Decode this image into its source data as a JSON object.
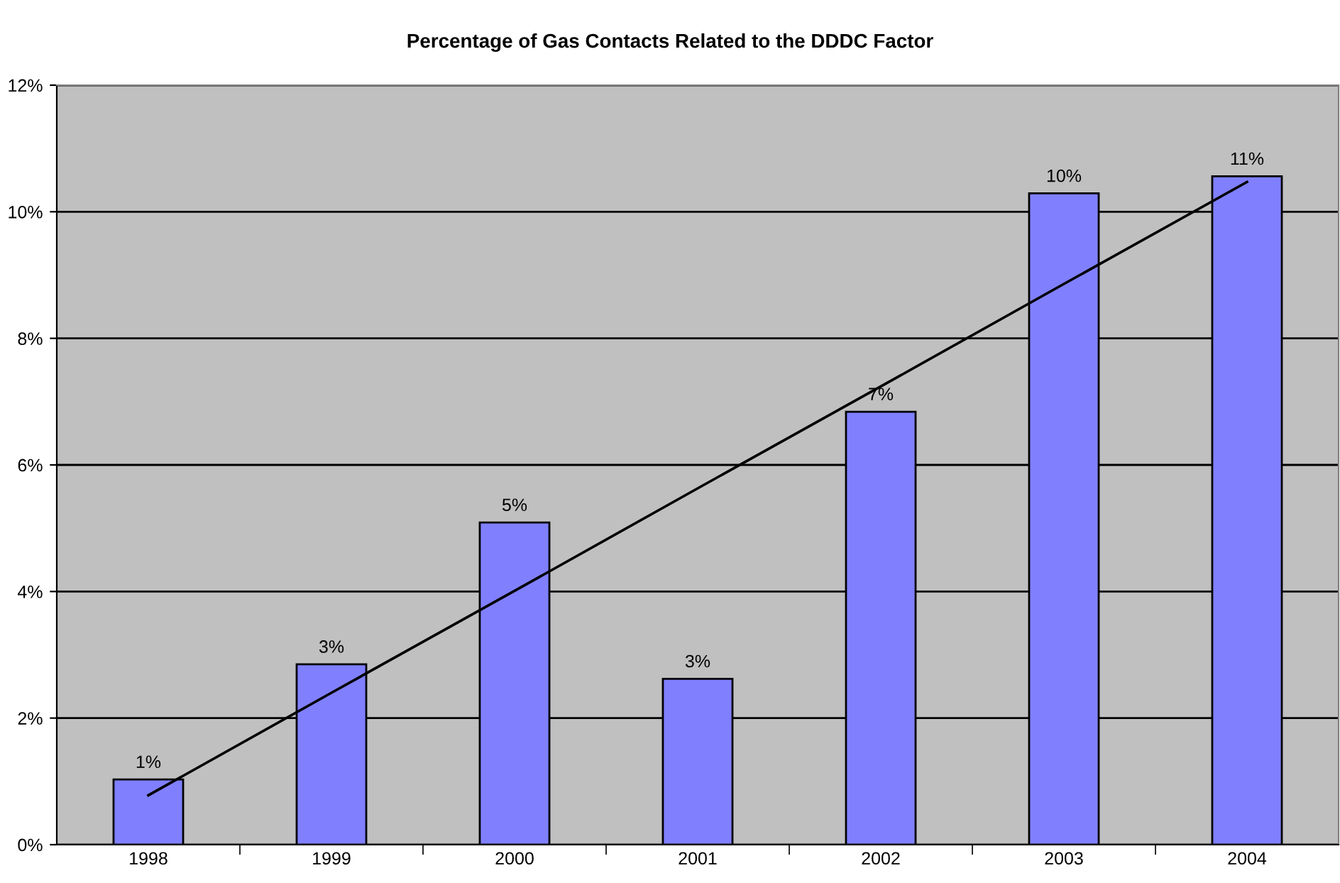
{
  "chart_data": {
    "type": "bar",
    "title": "Percentage of Gas Contacts Related to the DDDC Factor",
    "categories": [
      "1998",
      "1999",
      "2000",
      "2001",
      "2002",
      "2003",
      "2004"
    ],
    "series": [
      {
        "color": "#8080ff",
        "values": [
          1.03,
          2.85,
          5.09,
          2.62,
          6.84,
          10.29,
          10.56
        ],
        "value_labels": [
          "1%",
          "3%",
          "5%",
          "3%",
          "7%",
          "10%",
          "11%"
        ]
      },
      {
        "type": "line",
        "color": "#000000",
        "values": [
          0.78,
          2.4,
          4.01,
          5.63,
          7.24,
          8.86,
          10.47
        ]
      }
    ],
    "ylim": [
      0,
      12
    ],
    "yticks": [
      {
        "value": 0,
        "label": "0%"
      },
      {
        "value": 2,
        "label": "2%"
      },
      {
        "value": 4,
        "label": "4%"
      },
      {
        "value": 6,
        "label": "6%"
      },
      {
        "value": 8,
        "label": "8%"
      },
      {
        "value": 10,
        "label": "10%"
      },
      {
        "value": 12,
        "label": "12%"
      }
    ],
    "grid": "y",
    "legend": false
  }
}
